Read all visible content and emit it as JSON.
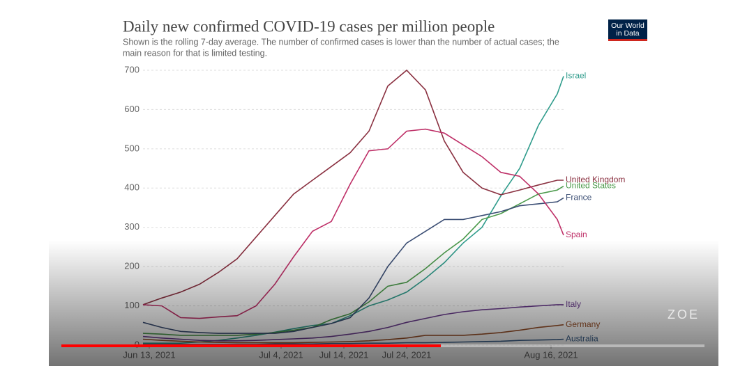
{
  "chart_data": {
    "type": "line",
    "title": "Daily new confirmed COVID-19 cases per million people",
    "subtitle_lines": [
      "Shown is the rolling 7-day average. The number of confirmed cases is lower than the number of actual cases; the",
      "main reason for that is limited testing."
    ],
    "logo_lines": [
      "Our World",
      "in Data"
    ],
    "watermark": "ZOE",
    "x": [
      "2021-06-12",
      "2021-06-15",
      "2021-06-18",
      "2021-06-21",
      "2021-06-24",
      "2021-06-27",
      "2021-06-30",
      "2021-07-03",
      "2021-07-06",
      "2021-07-09",
      "2021-07-12",
      "2021-07-15",
      "2021-07-18",
      "2021-07-21",
      "2021-07-24",
      "2021-07-27",
      "2021-07-30",
      "2021-08-02",
      "2021-08-05",
      "2021-08-08",
      "2021-08-11",
      "2021-08-14",
      "2021-08-17",
      "2021-08-18"
    ],
    "xlim": [
      "2021-06-12",
      "2021-08-18"
    ],
    "xticks": [
      {
        "value": "2021-06-13",
        "label": "Jun 13, 2021"
      },
      {
        "value": "2021-07-04",
        "label": "Jul 4, 2021"
      },
      {
        "value": "2021-07-14",
        "label": "Jul 14, 2021"
      },
      {
        "value": "2021-07-24",
        "label": "Jul 24, 2021"
      },
      {
        "value": "2021-08-16",
        "label": "Aug 16, 2021"
      }
    ],
    "ylim": [
      0,
      700
    ],
    "yticks": [
      0,
      100,
      200,
      300,
      400,
      500,
      600,
      700
    ],
    "grid": true,
    "series": [
      {
        "name": "Israel",
        "color": "#2f9c8c",
        "values": [
          5,
          5,
          5,
          8,
          12,
          18,
          25,
          33,
          42,
          50,
          55,
          75,
          100,
          115,
          135,
          170,
          210,
          260,
          300,
          380,
          450,
          560,
          640,
          685
        ]
      },
      {
        "name": "United Kingdom",
        "color": "#8a3040",
        "values": [
          103,
          120,
          135,
          155,
          185,
          220,
          275,
          330,
          385,
          420,
          455,
          490,
          545,
          660,
          700,
          650,
          520,
          440,
          400,
          383,
          395,
          408,
          420,
          420
        ]
      },
      {
        "name": "United States",
        "color": "#4b9a4b",
        "values": [
          30,
          28,
          25,
          25,
          25,
          25,
          28,
          32,
          38,
          45,
          65,
          80,
          110,
          150,
          160,
          195,
          235,
          270,
          320,
          335,
          360,
          385,
          395,
          405
        ]
      },
      {
        "name": "France",
        "color": "#3b4e74",
        "values": [
          58,
          45,
          35,
          32,
          30,
          30,
          30,
          30,
          35,
          45,
          55,
          70,
          120,
          200,
          260,
          290,
          320,
          320,
          330,
          340,
          355,
          360,
          365,
          375
        ]
      },
      {
        "name": "Spain",
        "color": "#be2f67",
        "values": [
          103,
          100,
          70,
          68,
          72,
          75,
          100,
          155,
          225,
          290,
          315,
          410,
          495,
          500,
          545,
          550,
          540,
          510,
          480,
          440,
          430,
          385,
          320,
          280
        ]
      },
      {
        "name": "Italy",
        "color": "#6c3d90",
        "values": [
          22,
          18,
          15,
          12,
          11,
          11,
          12,
          14,
          16,
          18,
          22,
          28,
          35,
          45,
          58,
          68,
          78,
          85,
          90,
          93,
          97,
          100,
          103,
          103
        ]
      },
      {
        "name": "Germany",
        "color": "#9a5129",
        "values": [
          15,
          12,
          10,
          8,
          7,
          6,
          6,
          6,
          6,
          7,
          8,
          9,
          11,
          14,
          18,
          25,
          25,
          25,
          28,
          32,
          38,
          45,
          50,
          52
        ]
      },
      {
        "name": "Australia",
        "color": "#3a5f8a",
        "values": [
          2,
          2,
          2,
          2,
          2,
          2,
          2,
          3,
          3,
          3,
          4,
          4,
          5,
          5,
          6,
          6,
          7,
          8,
          9,
          10,
          12,
          13,
          14,
          15
        ]
      }
    ]
  }
}
